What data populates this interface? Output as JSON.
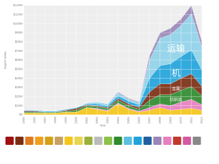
{
  "chart_data": {
    "type": "stacked-area",
    "y_label": "Export Value",
    "x_label": "Year",
    "x": [
      1995,
      1996,
      1997,
      1998,
      1999,
      2000,
      2001,
      2002,
      2003,
      2004,
      2005,
      2006,
      2007,
      2008,
      2009,
      2010,
      2011,
      2012
    ],
    "xlim": [
      1995,
      2012
    ],
    "xticks": [
      1995,
      1996,
      1997,
      1998,
      1999,
      2000,
      2001,
      2002,
      2003,
      2004,
      2005,
      2006,
      2007,
      2008,
      2009,
      2010,
      2011,
      2012
    ],
    "ylim": [
      0,
      120
    ],
    "yticks": [
      {
        "value": 0,
        "label": "$0"
      },
      {
        "value": 10,
        "label": "$10M"
      },
      {
        "value": 20,
        "label": "$20M"
      },
      {
        "value": 30,
        "label": "$30M"
      },
      {
        "value": 40,
        "label": "$40M"
      },
      {
        "value": 50,
        "label": "$50M"
      },
      {
        "value": 60,
        "label": "$60M"
      },
      {
        "value": 70,
        "label": "$70M"
      },
      {
        "value": 80,
        "label": "$80M"
      },
      {
        "value": 90,
        "label": "$90M"
      },
      {
        "value": 100,
        "label": "$100M"
      },
      {
        "value": 110,
        "label": "$110M"
      },
      {
        "value": 120,
        "label": "$120M"
      }
    ],
    "grid": true,
    "series": [
      {
        "color": "#f5c518",
        "values": [
          2,
          2,
          2,
          2,
          3,
          3,
          8,
          6,
          4,
          12,
          6,
          3,
          5,
          8,
          5,
          6,
          7,
          5
        ]
      },
      {
        "color": "#e87fc0",
        "values": [
          0,
          0,
          0,
          0,
          0,
          0,
          0,
          1,
          1,
          1,
          1,
          1,
          3,
          4,
          5,
          8,
          10,
          6
        ]
      },
      {
        "color": "#2e8b2e",
        "label": "纺织品",
        "values": [
          1,
          1,
          1,
          1,
          1,
          2,
          2,
          2,
          2,
          3,
          3,
          2,
          8,
          10,
          12,
          13,
          14,
          10
        ]
      },
      {
        "color": "#7b2d12",
        "label": "金属",
        "values": [
          1,
          1,
          0,
          0,
          1,
          2,
          1,
          1,
          1,
          2,
          2,
          2,
          9,
          12,
          12,
          13,
          14,
          10
        ]
      },
      {
        "color": "#1fa3dc",
        "label": "机",
        "values": [
          1,
          1,
          1,
          1,
          1,
          1,
          1,
          2,
          2,
          3,
          3,
          3,
          15,
          20,
          22,
          24,
          26,
          18
        ]
      },
      {
        "color": "#8fd3ea",
        "label": "运输",
        "values": [
          0,
          0,
          0,
          0,
          0,
          0,
          1,
          2,
          2,
          3,
          2,
          2,
          20,
          30,
          32,
          34,
          40,
          25
        ]
      },
      {
        "color": "#9a86b8",
        "values": [
          0,
          0,
          0,
          0,
          0,
          0,
          0,
          0,
          0,
          1,
          1,
          1,
          5,
          6,
          7,
          7,
          9,
          6
        ]
      }
    ]
  }
}
